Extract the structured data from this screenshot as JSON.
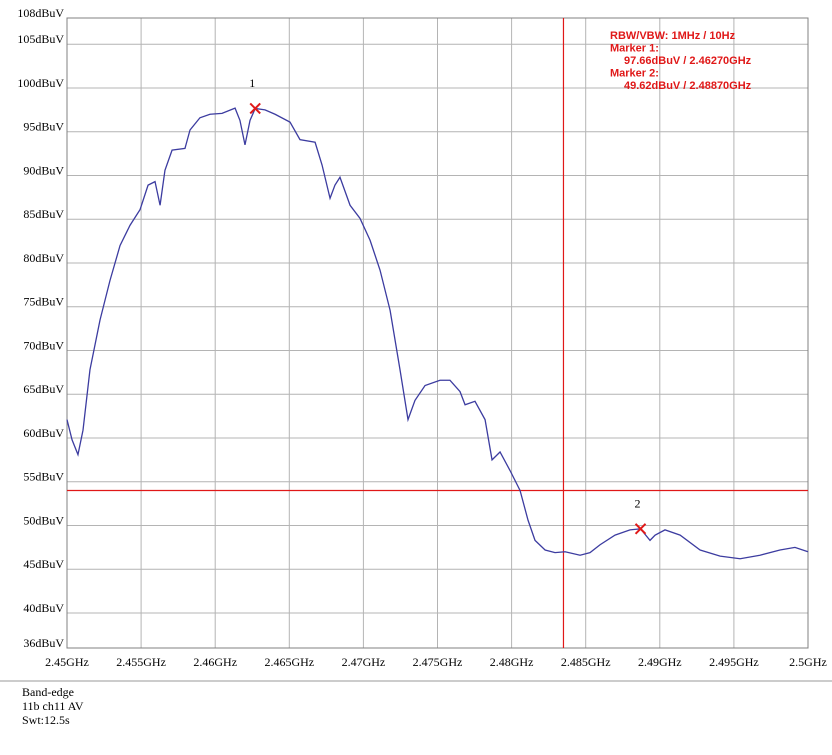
{
  "chart_data": {
    "type": "line",
    "color": "#3c3ca0",
    "grid": true,
    "xlim": [
      2.45,
      2.5
    ],
    "xticks": [
      {
        "value": 2.45,
        "label": "2.45GHz"
      },
      {
        "value": 2.455,
        "label": "2.455GHz"
      },
      {
        "value": 2.46,
        "label": "2.46GHz"
      },
      {
        "value": 2.465,
        "label": "2.465GHz"
      },
      {
        "value": 2.47,
        "label": "2.47GHz"
      },
      {
        "value": 2.475,
        "label": "2.475GHz"
      },
      {
        "value": 2.48,
        "label": "2.48GHz"
      },
      {
        "value": 2.485,
        "label": "2.485GHz"
      },
      {
        "value": 2.49,
        "label": "2.49GHz"
      },
      {
        "value": 2.495,
        "label": "2.495GHz"
      },
      {
        "value": 2.5,
        "label": "2.5GHz"
      }
    ],
    "ylim": [
      36,
      108
    ],
    "yticks": [
      {
        "value": 36,
        "label": "36dBuV"
      },
      {
        "value": 40,
        "label": "40dBuV"
      },
      {
        "value": 45,
        "label": "45dBuV"
      },
      {
        "value": 50,
        "label": "50dBuV"
      },
      {
        "value": 55,
        "label": "55dBuV"
      },
      {
        "value": 60,
        "label": "60dBuV"
      },
      {
        "value": 65,
        "label": "65dBuV"
      },
      {
        "value": 70,
        "label": "70dBuV"
      },
      {
        "value": 75,
        "label": "75dBuV"
      },
      {
        "value": 80,
        "label": "80dBuV"
      },
      {
        "value": 85,
        "label": "85dBuV"
      },
      {
        "value": 90,
        "label": "90dBuV"
      },
      {
        "value": 95,
        "label": "95dBuV"
      },
      {
        "value": 100,
        "label": "100dBuV"
      },
      {
        "value": 105,
        "label": "105dBuV"
      },
      {
        "value": 108,
        "label": "108dBuV"
      }
    ],
    "x": [
      2.45,
      2.45034,
      2.45074,
      2.45108,
      2.45155,
      2.45223,
      2.4529,
      2.45358,
      2.45425,
      2.45493,
      2.45547,
      2.45594,
      2.45628,
      2.45661,
      2.45709,
      2.45796,
      2.4583,
      2.45897,
      2.45965,
      2.46046,
      2.46134,
      2.46167,
      2.46201,
      2.46235,
      2.4627,
      2.46336,
      2.46404,
      2.46505,
      2.46572,
      2.46674,
      2.46721,
      2.46775,
      2.46808,
      2.46842,
      2.4691,
      2.46977,
      2.47045,
      2.47112,
      2.4718,
      2.47247,
      2.47301,
      2.47348,
      2.47416,
      2.47517,
      2.47584,
      2.47652,
      2.47686,
      2.47753,
      2.47821,
      2.47868,
      2.47922,
      2.47989,
      2.48057,
      2.48111,
      2.48158,
      2.48226,
      2.48293,
      2.48361,
      2.48462,
      2.48529,
      2.48597,
      2.48698,
      2.48799,
      2.4887,
      2.48934,
      2.48968,
      2.49035,
      2.49137,
      2.49272,
      2.49407,
      2.49542,
      2.49676,
      2.49811,
      2.49912,
      2.5
    ],
    "values": [
      62.1,
      59.8,
      58.1,
      60.9,
      67.8,
      73.5,
      78,
      82,
      84.3,
      86.1,
      88.9,
      89.3,
      86.6,
      90.6,
      92.9,
      93.1,
      95.2,
      96.6,
      97,
      97.1,
      97.7,
      96.3,
      93.5,
      96.3,
      97.66,
      97.5,
      97,
      96.1,
      94.1,
      93.8,
      91.2,
      87.4,
      88.9,
      89.8,
      86.6,
      85.1,
      82.6,
      79.2,
      74.6,
      67.8,
      62.1,
      64.3,
      66,
      66.6,
      66.6,
      65.3,
      63.8,
      64.2,
      62.1,
      57.5,
      58.4,
      56.3,
      54,
      50.6,
      48.3,
      47.2,
      46.9,
      47,
      46.6,
      46.9,
      47.8,
      48.9,
      49.5,
      49.62,
      48.3,
      48.9,
      49.5,
      48.9,
      47.2,
      46.5,
      46.2,
      46.6,
      47.2,
      47.5,
      47
    ],
    "markers": [
      {
        "label": "1",
        "x": 2.4627,
        "y": 97.66
      },
      {
        "label": "2",
        "x": 2.4887,
        "y": 49.62
      }
    ],
    "marker_color": "#e01818",
    "limit_lines": {
      "x": 2.4835,
      "y": 54,
      "color": "#e01818"
    },
    "annotations": [
      "RBW/VBW: 1MHz / 10Hz",
      "Marker 1:",
      "97.66dBuV / 2.46270GHz",
      "Marker 2:",
      "49.62dBuV / 2.48870GHz"
    ],
    "notes": [
      "Band-edge",
      "11b ch11 AV",
      "Swt:12.5s"
    ]
  }
}
